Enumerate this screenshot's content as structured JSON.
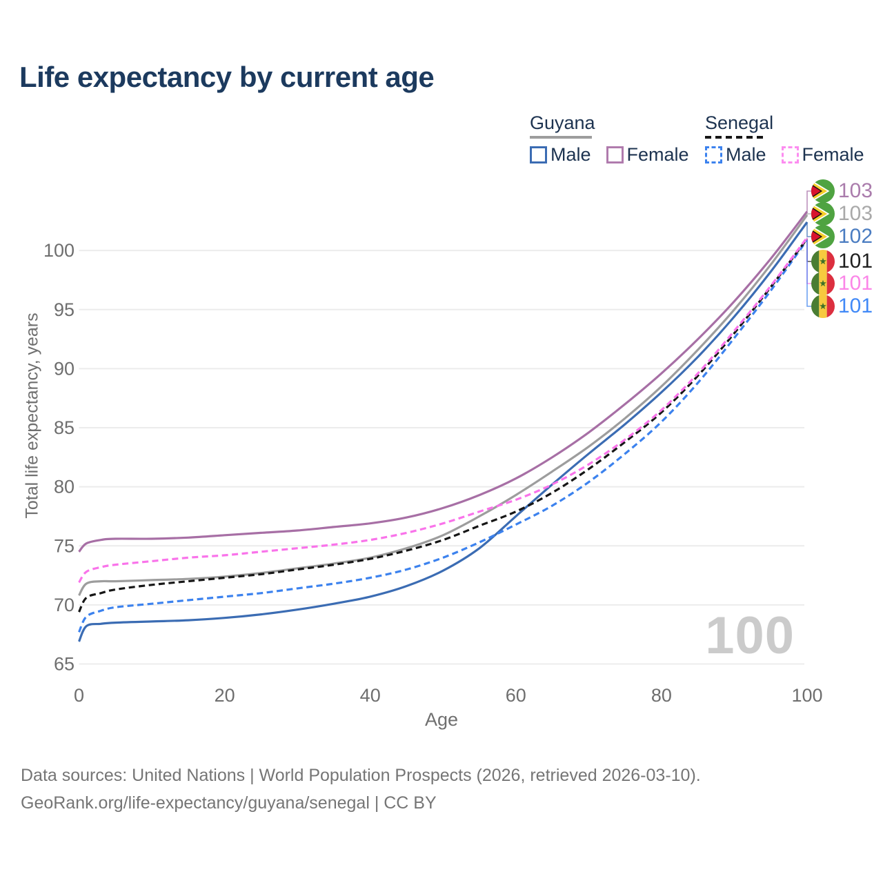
{
  "header": {
    "title": "Life expectancy by current age"
  },
  "legend": {
    "groups": [
      {
        "title": "Guyana",
        "line_style": "solid",
        "items": [
          {
            "label": "Male",
            "color": "#3b6cb3"
          },
          {
            "label": "Female",
            "color": "#a76fa5"
          }
        ]
      },
      {
        "title": "Senegal",
        "line_style": "dashed",
        "items": [
          {
            "label": "Male",
            "color": "#3c82ee"
          },
          {
            "label": "Female",
            "color": "#f973ea"
          }
        ]
      }
    ]
  },
  "footer": {
    "line1": "Data sources: United Nations | World Population Prospects (2026, retrieved 2026-03-10).",
    "line2": "GeoRank.org/life-expectancy/guyana/senegal | CC BY"
  },
  "chart_data": {
    "type": "line",
    "title": "Life expectancy by current age",
    "xlabel": "Age",
    "ylabel": "Total life expectancy, years",
    "x_ticks": [
      0,
      20,
      40,
      60,
      80,
      100
    ],
    "y_ticks": [
      65,
      70,
      75,
      80,
      85,
      90,
      95,
      100
    ],
    "xlim": [
      0,
      100
    ],
    "ylim": [
      65,
      103.5
    ],
    "grid": "horizontal",
    "legend_position": "top-right",
    "age_counter": "100",
    "x": [
      0,
      1,
      3,
      5,
      10,
      15,
      20,
      25,
      30,
      35,
      40,
      45,
      50,
      55,
      60,
      65,
      70,
      75,
      80,
      85,
      90,
      95,
      100
    ],
    "series": [
      {
        "name": "Guyana Female",
        "country": "Guyana",
        "sex": "Female",
        "style": "solid",
        "color": "#a76fa5",
        "label_color": "#aa7cac",
        "end_label": "103",
        "flag": "guyana",
        "z": 2,
        "values": [
          74.5,
          75.2,
          75.5,
          75.6,
          75.6,
          75.7,
          75.9,
          76.1,
          76.3,
          76.6,
          76.9,
          77.4,
          78.2,
          79.3,
          80.7,
          82.5,
          84.6,
          87.0,
          89.6,
          92.5,
          95.7,
          99.3,
          103.3
        ]
      },
      {
        "name": "Guyana Both sexes",
        "country": "Guyana",
        "sex": "Both",
        "style": "solid",
        "color": "#9d9d9d",
        "label_color": "#a9a9a9",
        "end_label": "103",
        "flag": "guyana",
        "z": 1,
        "values": [
          70.8,
          71.8,
          72.0,
          72.0,
          72.1,
          72.2,
          72.4,
          72.7,
          73.1,
          73.5,
          74.0,
          74.8,
          75.9,
          77.5,
          79.3,
          81.3,
          83.4,
          85.8,
          88.5,
          91.6,
          95.0,
          98.8,
          103.0
        ]
      },
      {
        "name": "Guyana Male",
        "country": "Guyana",
        "sex": "Male",
        "style": "solid",
        "color": "#3b6cb3",
        "label_color": "#4a7cc1",
        "end_label": "102",
        "flag": "guyana",
        "z": 3,
        "values": [
          66.9,
          68.2,
          68.4,
          68.5,
          68.6,
          68.7,
          68.9,
          69.2,
          69.6,
          70.1,
          70.7,
          71.6,
          72.9,
          74.8,
          77.5,
          80.2,
          82.8,
          85.3,
          88.0,
          91.0,
          94.4,
          98.2,
          102.4
        ]
      },
      {
        "name": "Senegal Both sexes",
        "country": "Senegal",
        "sex": "Both",
        "style": "dashed",
        "color": "#161616",
        "label_color": "#1f1f1f",
        "end_label": "101",
        "flag": "senegal",
        "z": 5,
        "values": [
          69.4,
          70.6,
          71.0,
          71.3,
          71.7,
          72.0,
          72.3,
          72.6,
          73.0,
          73.4,
          73.9,
          74.6,
          75.5,
          76.7,
          77.9,
          79.5,
          81.5,
          83.8,
          86.3,
          89.4,
          93.0,
          96.9,
          101.0
        ]
      },
      {
        "name": "Senegal Female",
        "country": "Senegal",
        "sex": "Female",
        "style": "dashed",
        "color": "#f973ea",
        "label_color": "#fb86e8",
        "end_label": "101",
        "flag": "senegal",
        "z": 6,
        "values": [
          71.9,
          72.8,
          73.2,
          73.4,
          73.7,
          74.0,
          74.2,
          74.5,
          74.8,
          75.1,
          75.5,
          76.1,
          76.9,
          77.9,
          78.9,
          80.2,
          81.9,
          84.0,
          86.5,
          89.6,
          93.2,
          97.0,
          101.1
        ]
      },
      {
        "name": "Senegal Male",
        "country": "Senegal",
        "sex": "Male",
        "style": "dashed",
        "color": "#3c82ee",
        "label_color": "#4189f7",
        "end_label": "101",
        "flag": "senegal",
        "z": 4,
        "values": [
          67.7,
          69.0,
          69.5,
          69.8,
          70.1,
          70.4,
          70.7,
          71.0,
          71.4,
          71.8,
          72.3,
          73.0,
          74.0,
          75.3,
          76.8,
          78.4,
          80.4,
          82.8,
          85.5,
          88.8,
          92.6,
          96.6,
          100.9
        ]
      }
    ]
  }
}
